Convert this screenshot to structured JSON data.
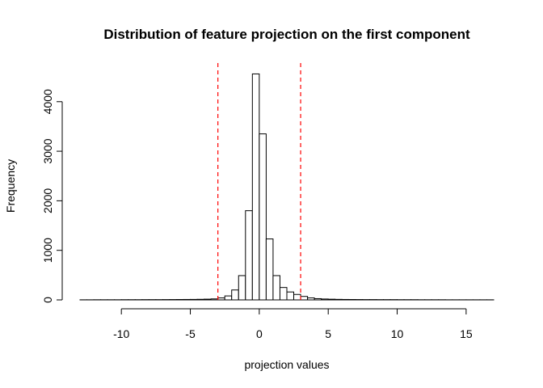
{
  "chart_data": {
    "type": "bar",
    "title": "Distribution of feature projection on the first component",
    "xlabel": "projection values",
    "ylabel": "Frequency",
    "xlim": [
      -13,
      17
    ],
    "ylim": [
      0,
      4600
    ],
    "x_ticks": [
      -10,
      -5,
      0,
      5,
      10,
      15
    ],
    "y_ticks": [
      0,
      1000,
      2000,
      3000,
      4000
    ],
    "bin_width": 0.5,
    "bins": [
      {
        "x0": -13,
        "x1": -12.5,
        "count": 2
      },
      {
        "x0": -12.5,
        "x1": -12,
        "count": 2
      },
      {
        "x0": -12,
        "x1": -11.5,
        "count": 3
      },
      {
        "x0": -11.5,
        "x1": -11,
        "count": 3
      },
      {
        "x0": -11,
        "x1": -10.5,
        "count": 3
      },
      {
        "x0": -10.5,
        "x1": -10,
        "count": 3
      },
      {
        "x0": -10,
        "x1": -9.5,
        "count": 4
      },
      {
        "x0": -9.5,
        "x1": -9,
        "count": 4
      },
      {
        "x0": -9,
        "x1": -8.5,
        "count": 4
      },
      {
        "x0": -8.5,
        "x1": -8,
        "count": 5
      },
      {
        "x0": -8,
        "x1": -7.5,
        "count": 5
      },
      {
        "x0": -7.5,
        "x1": -7,
        "count": 5
      },
      {
        "x0": -7,
        "x1": -6.5,
        "count": 6
      },
      {
        "x0": -6.5,
        "x1": -6,
        "count": 7
      },
      {
        "x0": -6,
        "x1": -5.5,
        "count": 8
      },
      {
        "x0": -5.5,
        "x1": -5,
        "count": 9
      },
      {
        "x0": -5,
        "x1": -4.5,
        "count": 10
      },
      {
        "x0": -4.5,
        "x1": -4,
        "count": 12
      },
      {
        "x0": -4,
        "x1": -3.5,
        "count": 15
      },
      {
        "x0": -3.5,
        "x1": -3,
        "count": 20
      },
      {
        "x0": -3,
        "x1": -2.5,
        "count": 40
      },
      {
        "x0": -2.5,
        "x1": -2,
        "count": 80
      },
      {
        "x0": -2,
        "x1": -1.5,
        "count": 200
      },
      {
        "x0": -1.5,
        "x1": -1,
        "count": 490
      },
      {
        "x0": -1,
        "x1": -0.5,
        "count": 1800
      },
      {
        "x0": -0.5,
        "x1": 0,
        "count": 4560
      },
      {
        "x0": 0,
        "x1": 0.5,
        "count": 3350
      },
      {
        "x0": 0.5,
        "x1": 1,
        "count": 1230
      },
      {
        "x0": 1,
        "x1": 1.5,
        "count": 490
      },
      {
        "x0": 1.5,
        "x1": 2,
        "count": 250
      },
      {
        "x0": 2,
        "x1": 2.5,
        "count": 160
      },
      {
        "x0": 2.5,
        "x1": 3,
        "count": 110
      },
      {
        "x0": 3,
        "x1": 3.5,
        "count": 70
      },
      {
        "x0": 3.5,
        "x1": 4,
        "count": 40
      },
      {
        "x0": 4,
        "x1": 4.5,
        "count": 25
      },
      {
        "x0": 4.5,
        "x1": 5,
        "count": 18
      },
      {
        "x0": 5,
        "x1": 5.5,
        "count": 14
      },
      {
        "x0": 5.5,
        "x1": 6,
        "count": 11
      },
      {
        "x0": 6,
        "x1": 6.5,
        "count": 9
      },
      {
        "x0": 6.5,
        "x1": 7,
        "count": 8
      },
      {
        "x0": 7,
        "x1": 7.5,
        "count": 7
      },
      {
        "x0": 7.5,
        "x1": 8,
        "count": 6
      },
      {
        "x0": 8,
        "x1": 8.5,
        "count": 6
      },
      {
        "x0": 8.5,
        "x1": 9,
        "count": 5
      },
      {
        "x0": 9,
        "x1": 9.5,
        "count": 5
      },
      {
        "x0": 9.5,
        "x1": 10,
        "count": 5
      },
      {
        "x0": 10,
        "x1": 10.5,
        "count": 4
      },
      {
        "x0": 10.5,
        "x1": 11,
        "count": 4
      },
      {
        "x0": 11,
        "x1": 11.5,
        "count": 4
      },
      {
        "x0": 11.5,
        "x1": 12,
        "count": 3
      },
      {
        "x0": 12,
        "x1": 12.5,
        "count": 3
      },
      {
        "x0": 12.5,
        "x1": 13,
        "count": 3
      },
      {
        "x0": 13,
        "x1": 13.5,
        "count": 3
      },
      {
        "x0": 13.5,
        "x1": 14,
        "count": 2
      },
      {
        "x0": 14,
        "x1": 14.5,
        "count": 2
      },
      {
        "x0": 14.5,
        "x1": 15,
        "count": 2
      },
      {
        "x0": 15,
        "x1": 15.5,
        "count": 2
      },
      {
        "x0": 15.5,
        "x1": 16,
        "count": 2
      },
      {
        "x0": 16,
        "x1": 16.5,
        "count": 2
      },
      {
        "x0": 16.5,
        "x1": 17,
        "count": 2
      }
    ],
    "reference_lines": [
      {
        "x": -3,
        "color": "#ff0000",
        "style": "dashed"
      },
      {
        "x": 3,
        "color": "#ff0000",
        "style": "dashed"
      }
    ],
    "bar_fill": "#ffffff",
    "bar_stroke": "#000000",
    "grid": false,
    "legend": "none"
  }
}
